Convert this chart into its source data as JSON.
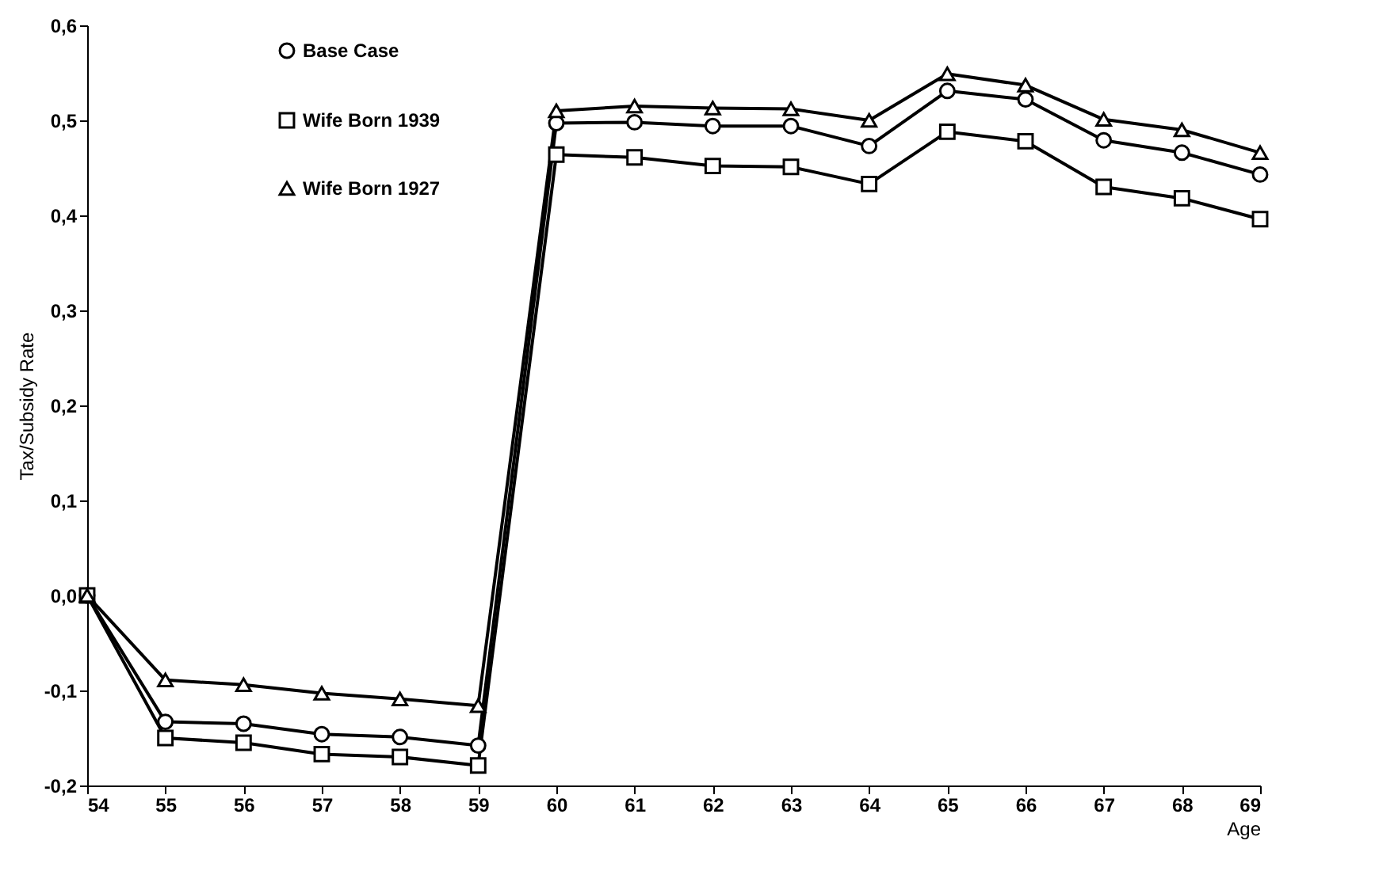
{
  "chart_data": {
    "type": "line",
    "xlabel": "Age",
    "ylabel": "Tax/Subsidy Rate",
    "x": [
      54,
      55,
      56,
      57,
      58,
      59,
      60,
      61,
      62,
      63,
      64,
      65,
      66,
      67,
      68,
      69
    ],
    "xlim": [
      54,
      69
    ],
    "xticks": [
      54,
      55,
      56,
      57,
      58,
      59,
      60,
      61,
      62,
      63,
      64,
      65,
      66,
      67,
      68,
      69
    ],
    "ylim": [
      -0.2,
      0.6
    ],
    "yticks": [
      {
        "value": -0.2,
        "label": "-0,2"
      },
      {
        "value": -0.1,
        "label": "-0,1"
      },
      {
        "value": 0,
        "label": "0,0"
      },
      {
        "value": 0.1,
        "label": "0,1"
      },
      {
        "value": 0.2,
        "label": "0,2"
      },
      {
        "value": 0.3,
        "label": "0,3"
      },
      {
        "value": 0.4,
        "label": "0,4"
      },
      {
        "value": 0.5,
        "label": "0,5"
      },
      {
        "value": 0.6,
        "label": "0,6"
      }
    ],
    "grid": false,
    "legend": "top left",
    "series": [
      {
        "name": "Base Case",
        "color": "#000000",
        "marker": "circle",
        "values": [
          0,
          -0.133,
          -0.135,
          -0.146,
          -0.149,
          -0.158,
          0.497,
          0.498,
          0.494,
          0.494,
          0.473,
          0.531,
          0.522,
          0.479,
          0.466,
          0.443
        ]
      },
      {
        "name": "Wife Born 1939",
        "color": "#000000",
        "marker": "square",
        "values": [
          0,
          -0.15,
          -0.155,
          -0.167,
          -0.17,
          -0.179,
          0.464,
          0.461,
          0.452,
          0.451,
          0.433,
          0.488,
          0.478,
          0.43,
          0.418,
          0.396
        ]
      },
      {
        "name": "Wife Born 1927",
        "color": "#000000",
        "marker": "triangle",
        "values": [
          0,
          -0.089,
          -0.094,
          -0.103,
          -0.109,
          -0.116,
          0.51,
          0.515,
          0.513,
          0.512,
          0.5,
          0.549,
          0.537,
          0.501,
          0.49,
          0.466
        ]
      }
    ]
  }
}
